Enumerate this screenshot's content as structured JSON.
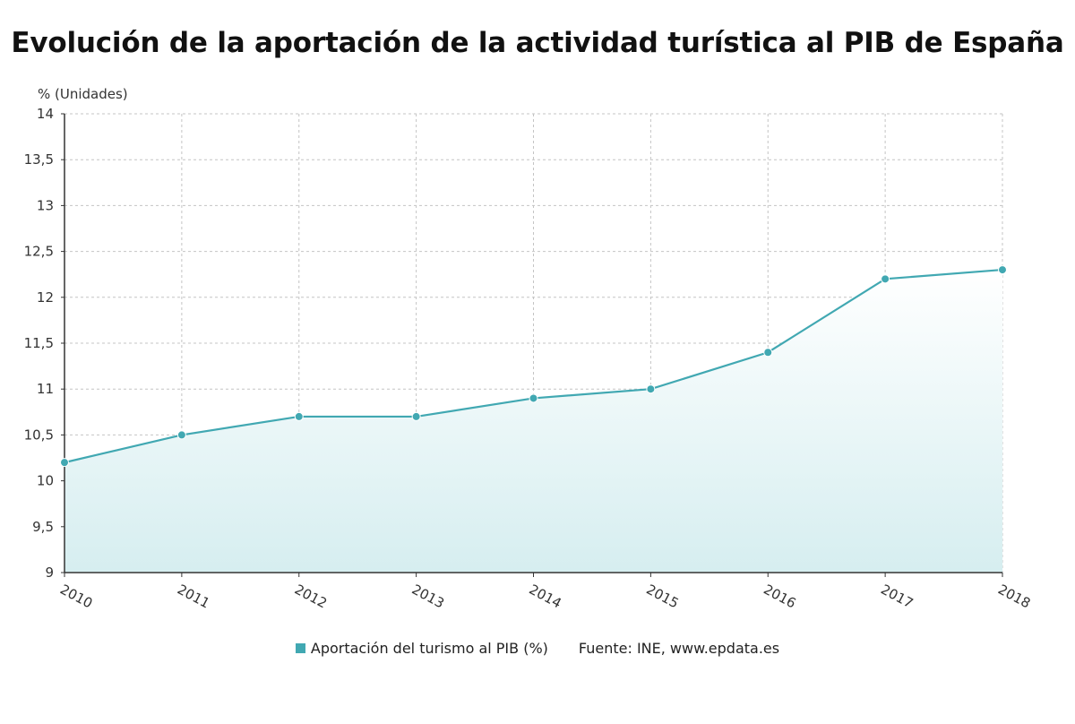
{
  "title": "Evolución de la aportación de la actividad turística al PIB de España",
  "colors": {
    "line": "#41a8b2",
    "marker": "#41a8b2",
    "area_top": "#ffffff",
    "area_bottom": "#d6eef0",
    "grid": "#c4c4c4",
    "axis": "#333333"
  },
  "legend": {
    "series_label": "Aportación del turismo al PIB (%)",
    "source": "Fuente: INE, www.epdata.es"
  },
  "chart_data": {
    "type": "area",
    "ylabel": "% (Unidades)",
    "ylim": [
      9,
      14
    ],
    "yticks": [
      9,
      9.5,
      10,
      10.5,
      11,
      11.5,
      12,
      12.5,
      13,
      13.5,
      14
    ],
    "ytick_labels": [
      "9",
      "9,5",
      "10",
      "10,5",
      "11",
      "11,5",
      "12",
      "12,5",
      "13",
      "13,5",
      "14"
    ],
    "categories": [
      "2010",
      "2011",
      "2012",
      "2013",
      "2014",
      "2015",
      "2016",
      "2017",
      "2018"
    ],
    "series": [
      {
        "name": "Aportación del turismo al PIB (%)",
        "values": [
          10.2,
          10.5,
          10.7,
          10.7,
          10.9,
          11.0,
          11.4,
          12.2,
          12.3
        ]
      }
    ],
    "grid": true,
    "legend_position": "bottom"
  }
}
